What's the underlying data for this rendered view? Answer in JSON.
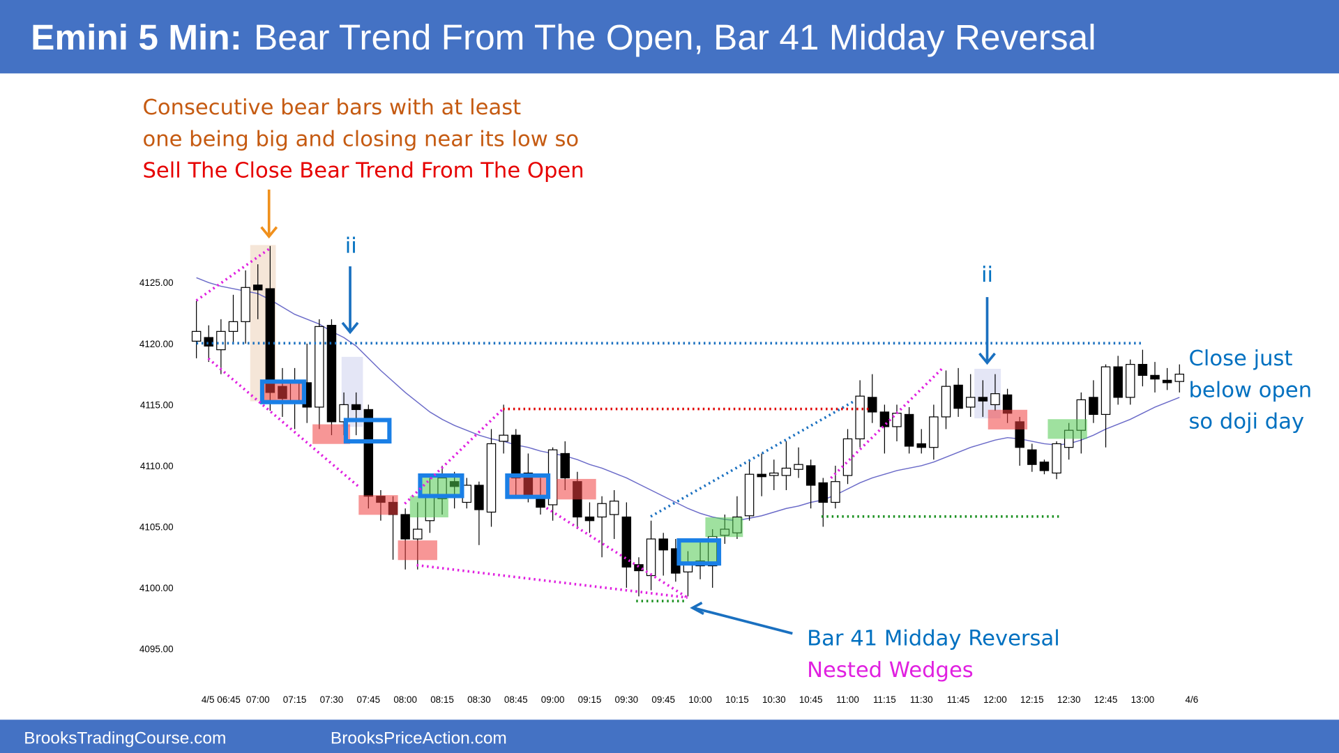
{
  "header": {
    "title_bold": "Emini 5 Min:",
    "title": "Bear Trend From The Open, Bar 41 Midday Reversal"
  },
  "chart_data": {
    "type": "candlestick",
    "categories": [
      null,
      null,
      "4/5 06:45",
      null,
      null,
      "07:00",
      null,
      null,
      "07:15",
      null,
      null,
      "07:30",
      null,
      null,
      "07:45",
      null,
      null,
      "08:00",
      null,
      null,
      "08:15",
      null,
      null,
      "08:30",
      null,
      null,
      "08:45",
      null,
      null,
      "09:00",
      null,
      null,
      "09:15",
      null,
      null,
      "09:30",
      null,
      null,
      "09:45",
      null,
      null,
      "10:00",
      null,
      null,
      "10:15",
      null,
      null,
      "10:30",
      null,
      null,
      "10:45",
      null,
      null,
      "11:00",
      null,
      null,
      "11:15",
      null,
      null,
      "11:30",
      null,
      null,
      "11:45",
      null,
      null,
      "12:00",
      null,
      null,
      "12:15",
      null,
      null,
      "12:30",
      null,
      null,
      "12:45",
      null,
      null,
      "13:00",
      null,
      null,
      null,
      "4/6"
    ],
    "ohlc": [
      [
        4120.2,
        4123.5,
        4118.8,
        4121.0
      ],
      [
        4120.5,
        4121.5,
        4118.5,
        4119.8
      ],
      [
        4119.5,
        4122,
        4117.5,
        4121
      ],
      [
        4121,
        4124,
        4120,
        4121.8
      ],
      [
        4121.8,
        4126,
        4120,
        4124.6
      ],
      [
        4124.8,
        4126.5,
        4122,
        4124.4
      ],
      [
        4124.5,
        4128,
        4114.5,
        4116
      ],
      [
        4116.5,
        4118,
        4114,
        4115.5
      ],
      [
        4115.3,
        4118,
        4113,
        4117
      ],
      [
        4116.8,
        4120,
        4113.5,
        4114.8
      ],
      [
        4114.8,
        4122,
        4113,
        4121.4
      ],
      [
        4121.5,
        4122,
        4112.5,
        4113.6
      ],
      [
        4113.6,
        4116,
        4112.5,
        4115
      ],
      [
        4115,
        4116,
        4112.5,
        4114.6
      ],
      [
        4114.6,
        4115,
        4106.5,
        4107.5
      ],
      [
        4107.5,
        4108,
        4105.5,
        4107
      ],
      [
        4107,
        4107.5,
        4102.3,
        4106
      ],
      [
        4106,
        4106.5,
        4101.5,
        4104
      ],
      [
        4104,
        4107,
        4101.5,
        4104.8
      ],
      [
        4105.5,
        4109,
        4104.5,
        4107.5
      ],
      [
        4107.3,
        4110,
        4106,
        4109
      ],
      [
        4108.7,
        4109.5,
        4106.5,
        4108.3
      ],
      [
        4107,
        4109,
        4106.5,
        4108.4
      ],
      [
        4108.4,
        4108.7,
        4103.5,
        4106.4
      ],
      [
        4106.2,
        4113,
        4105,
        4111.8
      ],
      [
        4112,
        4115,
        4111,
        4112.5
      ],
      [
        4112.5,
        4113,
        4107.5,
        4109
      ],
      [
        4109.4,
        4111,
        4107,
        4107.6
      ],
      [
        4107.3,
        4109,
        4106,
        4106.6
      ],
      [
        4106.8,
        4111.5,
        4105.5,
        4111.3
      ],
      [
        4111,
        4112,
        4108,
        4109
      ],
      [
        4108.7,
        4109.5,
        4104.8,
        4105.8
      ],
      [
        4105.8,
        4107,
        4104.5,
        4105.5
      ],
      [
        4105.8,
        4107.5,
        4102.5,
        4106.9
      ],
      [
        4106,
        4108,
        4104,
        4107.1
      ],
      [
        4105.8,
        4107,
        4100,
        4101.7
      ],
      [
        4101.9,
        4102.5,
        4099.3,
        4101.4
      ],
      [
        4101,
        4105.5,
        4099.8,
        4104
      ],
      [
        4104,
        4104.5,
        4101,
        4103.1
      ],
      [
        4103.2,
        4104,
        4100.5,
        4101.2
      ],
      [
        4101.3,
        4103,
        4099.3,
        4102
      ],
      [
        4101.8,
        4104,
        4100.7,
        4102.2
      ],
      [
        4101.8,
        4104.8,
        4100,
        4104.2
      ],
      [
        4104.3,
        4106,
        4103.6,
        4104.8
      ],
      [
        4104.5,
        4107.5,
        4104,
        4105.8
      ],
      [
        4105.9,
        4110.5,
        4105.5,
        4109.3
      ],
      [
        4109.3,
        4111,
        4107.5,
        4109.1
      ],
      [
        4109.2,
        4110.5,
        4108,
        4109.4
      ],
      [
        4109.2,
        4112,
        4108,
        4109.8
      ],
      [
        4109.7,
        4111.5,
        4109,
        4110.1
      ],
      [
        4110,
        4110.5,
        4106.5,
        4108.4
      ],
      [
        4108.6,
        4109,
        4105,
        4107
      ],
      [
        4107,
        4110,
        4106.5,
        4108.7
      ],
      [
        4109.2,
        4113,
        4108.5,
        4112.2
      ],
      [
        4112.2,
        4117,
        4111.5,
        4115.7
      ],
      [
        4115.6,
        4117.5,
        4113.5,
        4114.4
      ],
      [
        4114.4,
        4115,
        4111,
        4113.2
      ],
      [
        4113.2,
        4115,
        4112,
        4114.3
      ],
      [
        4114.2,
        4114.8,
        4111,
        4111.6
      ],
      [
        4111.8,
        4113,
        4111,
        4111.5
      ],
      [
        4111.5,
        4115,
        4110.5,
        4114
      ],
      [
        4114,
        4117.8,
        4113,
        4116.5
      ],
      [
        4116.6,
        4118,
        4114,
        4114.7
      ],
      [
        4114.8,
        4117.5,
        4114,
        4115.6
      ],
      [
        4115.6,
        4117,
        4114,
        4115.3
      ],
      [
        4115,
        4117.5,
        4114.5,
        4115.9
      ],
      [
        4115.8,
        4116.3,
        4113.5,
        4114.3
      ],
      [
        4113.6,
        4114,
        4110,
        4111.5
      ],
      [
        4111.3,
        4111.8,
        4109.5,
        4110.1
      ],
      [
        4110.3,
        4110.5,
        4109.3,
        4109.6
      ],
      [
        4109.4,
        4112,
        4108.9,
        4111.8
      ],
      [
        4111.5,
        4113.5,
        4110.5,
        4112.9
      ],
      [
        4112.9,
        4116,
        4111,
        4115.4
      ],
      [
        4115.6,
        4117,
        4113.5,
        4114.2
      ],
      [
        4114.2,
        4118.3,
        4111.5,
        4118.1
      ],
      [
        4118.1,
        4119,
        4115,
        4115.6
      ],
      [
        4115.6,
        4118.7,
        4115,
        4118.3
      ],
      [
        4118.3,
        4119.5,
        4116.5,
        4117.4
      ],
      [
        4117.4,
        4118.5,
        4116,
        4117.1
      ],
      [
        4117,
        4118,
        4116.2,
        4116.8
      ],
      [
        4116.9,
        4118.3,
        4116,
        4117.5
      ],
      null
    ],
    "ma": [
      4125.4,
      4125.0,
      4124.7,
      4124.5,
      4124.3,
      4124.1,
      4123.6,
      4123.0,
      4122.4,
      4122.0,
      4121.6,
      4121.0,
      4120.5,
      4119.8,
      4118.8,
      4117.8,
      4116.9,
      4116.0,
      4115.2,
      4114.4,
      4113.8,
      4113.3,
      4112.9,
      4112.5,
      4112.2,
      4112.0,
      4111.7,
      4111.5,
      4111.2,
      4111.0,
      4110.8,
      4110.5,
      4110.1,
      4109.8,
      4109.4,
      4109.0,
      4108.5,
      4108.0,
      4107.5,
      4107.0,
      4106.5,
      4106.1,
      4105.8,
      4105.6,
      4105.5,
      4105.7,
      4105.9,
      4106.2,
      4106.5,
      4106.7,
      4107.0,
      4107.2,
      4107.6,
      4108.1,
      4108.6,
      4109.0,
      4109.3,
      4109.6,
      4109.8,
      4110.0,
      4110.3,
      4110.7,
      4111.1,
      4111.5,
      4111.8,
      4112.1,
      4112.3,
      4112.2,
      4112.0,
      4111.8,
      4111.7,
      4111.8,
      4112.1,
      4112.5,
      4113.0,
      4113.4,
      4113.8,
      4114.3,
      4114.8,
      4115.2,
      4115.6,
      null
    ],
    "ma_color": "#6a6ac8",
    "up_color": "#ffffff",
    "down_color": "#000000",
    "ylim": [
      4093,
      4129
    ],
    "yticks": [
      {
        "value": 4095,
        "label": "4095.00"
      },
      {
        "value": 4100,
        "label": "4100.00"
      },
      {
        "value": 4105,
        "label": "4105.00"
      },
      {
        "value": 4110,
        "label": "4110.00"
      },
      {
        "value": 4115,
        "label": "4115.00"
      },
      {
        "value": 4120,
        "label": "4120.00"
      },
      {
        "value": 4125,
        "label": "4125.00"
      }
    ],
    "annotations": [
      {
        "text": "Consecutive bear bars with at least",
        "color": "#c55a11"
      },
      {
        "text": "one being big and closing near its low so",
        "color": "#c55a11"
      },
      {
        "text": "Sell The Close Bear Trend From The Open",
        "color": "#e60000"
      },
      {
        "text": "ii",
        "color": "#0070c0"
      },
      {
        "text": "ii",
        "color": "#0070c0"
      },
      {
        "text": "Bar 41 Midday Reversal",
        "color": "#0070c0"
      },
      {
        "text": "Nested Wedges",
        "color": "#e020e0"
      },
      {
        "text": "Close just",
        "color": "#0070c0"
      },
      {
        "text": "below open",
        "color": "#0070c0"
      },
      {
        "text": "so doji day",
        "color": "#0070c0"
      }
    ]
  },
  "footer": {
    "left": "BrooksTradingCourse.com",
    "right": "BrooksPriceAction.com"
  }
}
